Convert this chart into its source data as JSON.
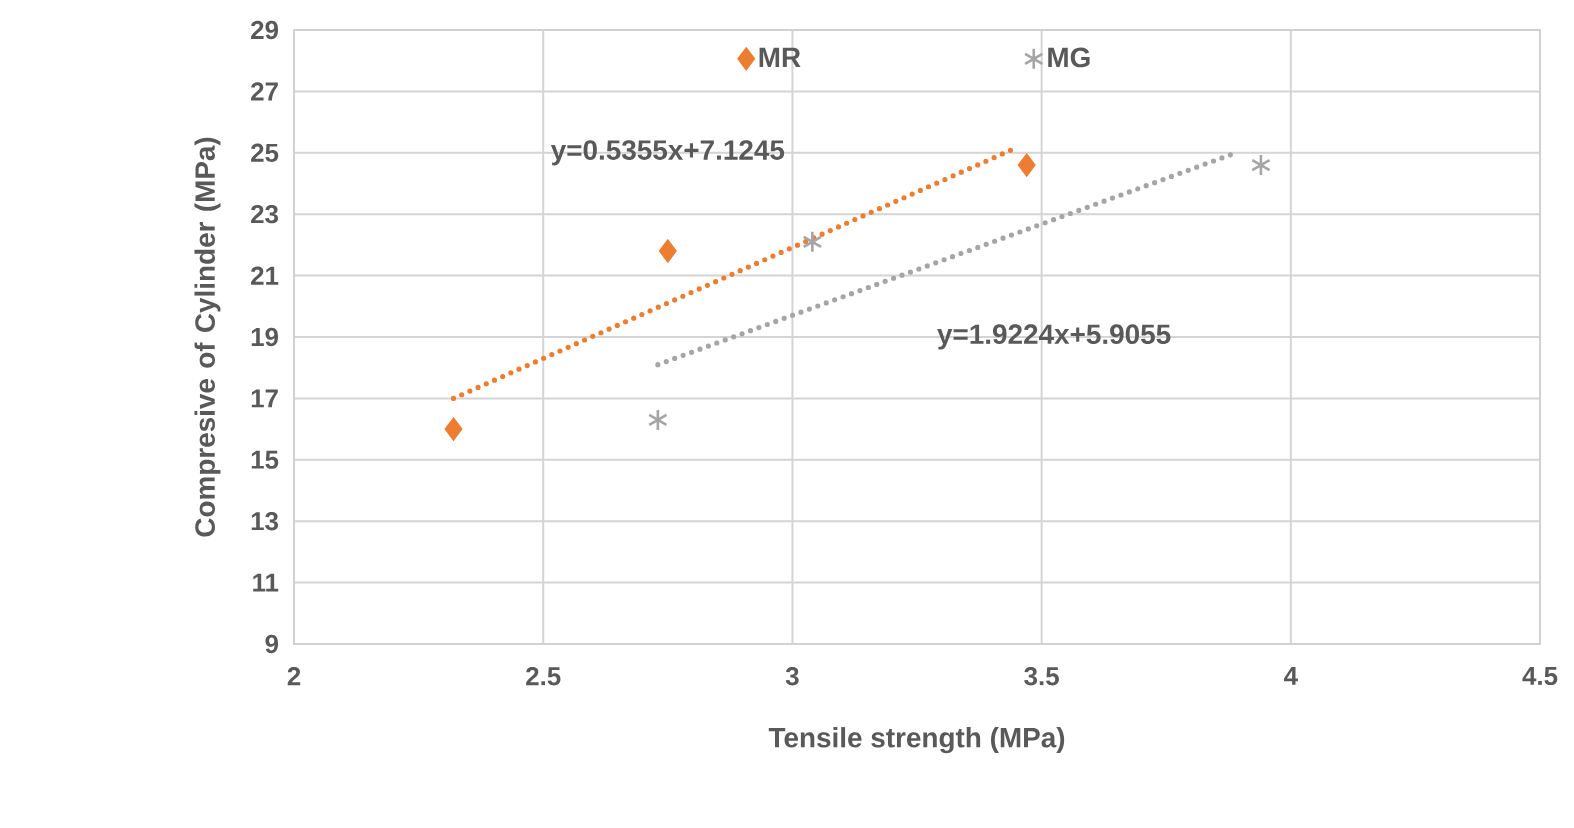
{
  "chart_data": {
    "type": "scatter",
    "xlabel": "Tensile strength (MPa)",
    "ylabel": "Compresive of Cylinder (MPa)",
    "xlim": [
      2,
      4.5
    ],
    "xticks": [
      2,
      2.5,
      3,
      3.5,
      4,
      4.5
    ],
    "ylim": [
      9,
      29
    ],
    "yticks": [
      9,
      11,
      13,
      15,
      17,
      19,
      21,
      23,
      25,
      27,
      29
    ],
    "grid": true,
    "legend": "top",
    "series": [
      {
        "name": "MR",
        "color": "#ed7d31",
        "marker": "diamond",
        "x": [
          2.32,
          2.75,
          3.47
        ],
        "values": [
          16,
          21.8,
          24.6
        ]
      },
      {
        "name": "MG",
        "color": "#a5a5a5",
        "marker": "cross",
        "x": [
          2.73,
          3.04,
          3.94
        ],
        "values": [
          16.3,
          22.1,
          24.6
        ]
      },
      {
        "type": "line",
        "color": "#ed7d31",
        "marker": "none",
        "line_style": "dotted",
        "x": [
          2.32,
          3.44
        ],
        "values": [
          17.0,
          25.1
        ]
      },
      {
        "type": "line",
        "color": "#a5a5a5",
        "marker": "none",
        "line_style": "dotted",
        "x": [
          2.73,
          3.89
        ],
        "values": [
          18.1,
          25.0
        ]
      }
    ],
    "annotations": [
      "y=0.5355x+7.1245",
      "y=1.9224x+5.9055"
    ]
  }
}
